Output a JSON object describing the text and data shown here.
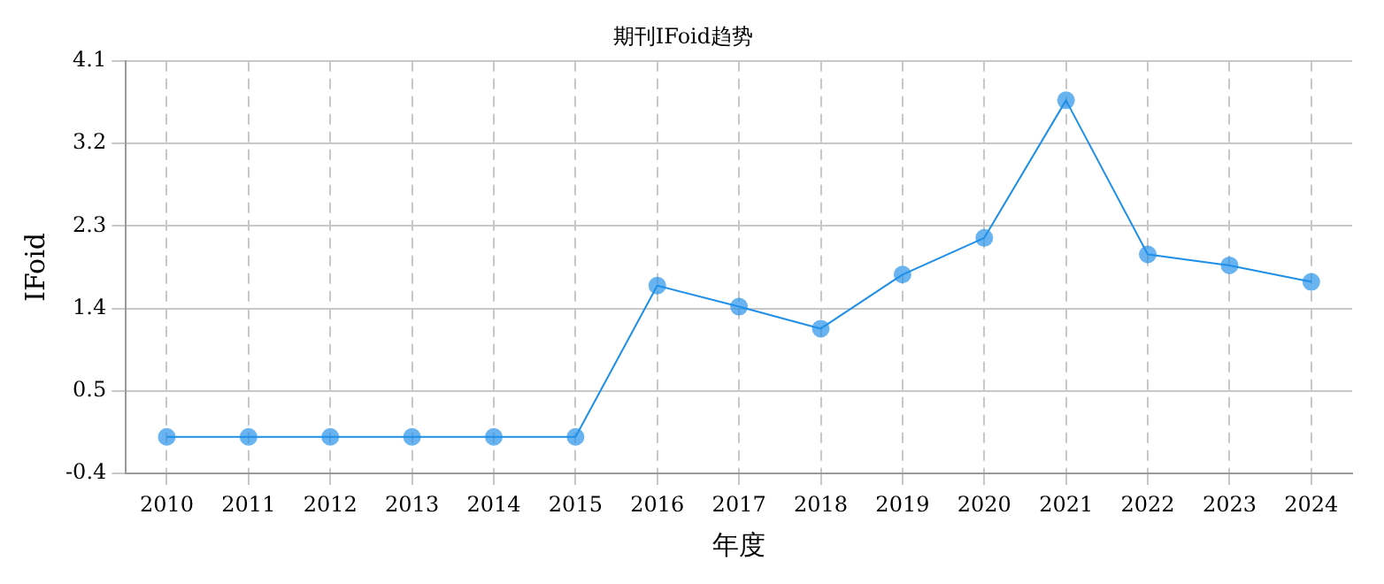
{
  "chart_data": {
    "type": "line",
    "title": "期刊IFoid趋势",
    "xlabel": "年度",
    "ylabel": "IFoid",
    "categories": [
      "2010",
      "2011",
      "2012",
      "2013",
      "2014",
      "2015",
      "2016",
      "2017",
      "2018",
      "2019",
      "2020",
      "2021",
      "2022",
      "2023",
      "2024"
    ],
    "series": [
      {
        "color": "#1e8fe8",
        "values": [
          0,
          0,
          0,
          0,
          0,
          0,
          1.65,
          1.42,
          1.18,
          1.77,
          2.17,
          3.67,
          1.99,
          1.87,
          1.69
        ]
      }
    ],
    "ylim": [
      -0.4,
      4.1
    ],
    "yticks": [
      -0.4,
      0.5,
      1.4,
      2.3,
      3.2,
      4.1
    ],
    "grid": true,
    "legend": false,
    "marker": "circle",
    "line_style": "solid"
  }
}
